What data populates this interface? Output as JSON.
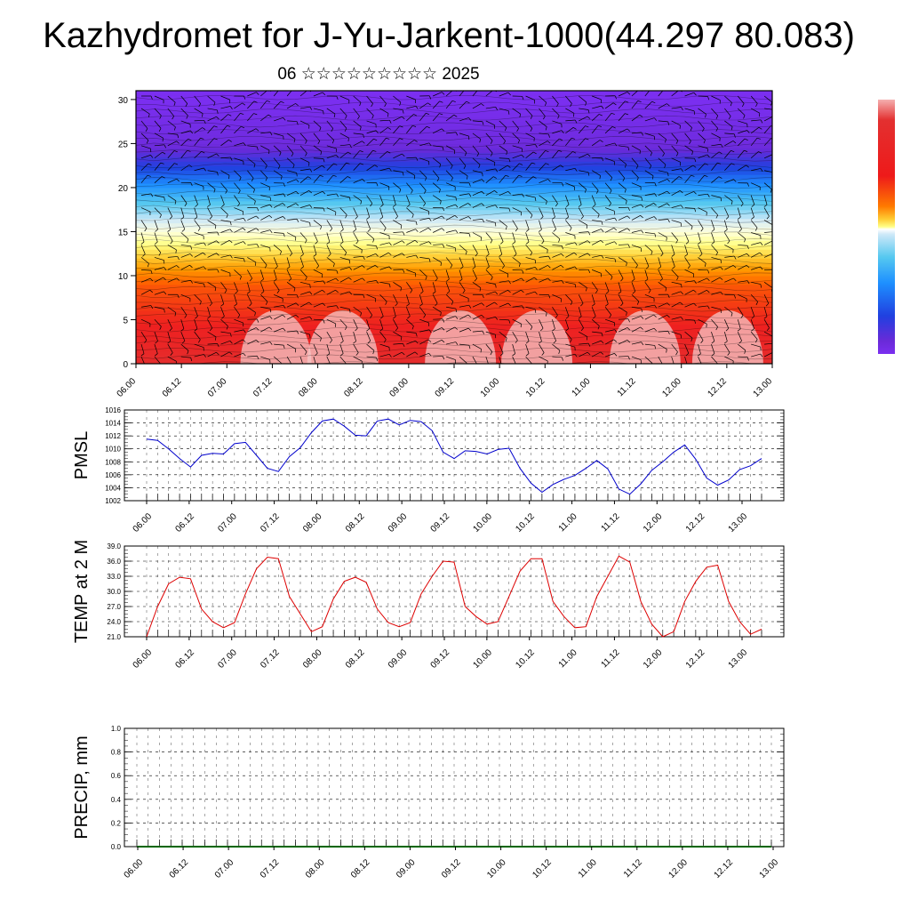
{
  "header": {
    "title": "Kazhydromet for J-Yu-Jarkent-1000(44.297 80.083)",
    "subtitle": "06 ☆☆☆☆☆☆☆☆☆ 2025"
  },
  "chart_data": [
    {
      "type": "heatmap",
      "title": "",
      "xlabel": "",
      "ylabel": "",
      "x_tick_labels": [
        "06.00",
        "06.12",
        "07.00",
        "07.12",
        "08.00",
        "08.12",
        "09.00",
        "09.12",
        "10.00",
        "10.12",
        "11.00",
        "11.12",
        "12.00",
        "12.12",
        "13.00"
      ],
      "y_tick_labels": [
        "0",
        "5",
        "10",
        "15",
        "20",
        "25",
        "30"
      ],
      "ylim": [
        0,
        31
      ],
      "colormap": [
        "#ffffff",
        "#e8a0a0",
        "#e33030",
        "#ee2020",
        "#ff6600",
        "#ff9900",
        "#ffcc33",
        "#ffff88",
        "#ffffdd",
        "#cde8f8",
        "#55c8f0",
        "#1e90ff",
        "#2040e0",
        "#6a2ad8",
        "#7b2ff0"
      ],
      "overlay": "wind barbs"
    },
    {
      "type": "line",
      "title": "",
      "xlabel": "",
      "ylabel": "PMSL",
      "x_tick_labels": [
        "06.00",
        "06.12",
        "07.00",
        "07.12",
        "08.00",
        "08.12",
        "09.00",
        "09.12",
        "10.00",
        "10.12",
        "11.00",
        "11.12",
        "12.00",
        "12.12",
        "13.00"
      ],
      "y_tick_labels": [
        "1002",
        "1004",
        "1006",
        "1008",
        "1010",
        "1012",
        "1014",
        "1016"
      ],
      "ylim": [
        1002,
        1016
      ],
      "grid": true,
      "color": "#0000cc",
      "series": [
        {
          "values": [
            1011.5,
            1011.3,
            1010.0,
            1008.5,
            1007.2,
            1009.0,
            1009.3,
            1009.2,
            1010.8,
            1011.0,
            1009.0,
            1007.0,
            1006.5,
            1008.8,
            1010.2,
            1012.5,
            1014.3,
            1014.6,
            1013.5,
            1012.1,
            1012.0,
            1014.3,
            1014.6,
            1013.7,
            1014.4,
            1014.2,
            1012.8,
            1009.5,
            1008.5,
            1009.7,
            1009.6,
            1009.2,
            1009.9,
            1010.1,
            1007.0,
            1004.7,
            1003.3,
            1004.5,
            1005.3,
            1005.9,
            1007.0,
            1008.2,
            1006.9,
            1003.8,
            1003.0,
            1004.6,
            1006.7,
            1008.0,
            1009.5,
            1010.6,
            1008.4,
            1005.5,
            1004.4,
            1005.2,
            1006.8,
            1007.4,
            1008.5
          ]
        }
      ]
    },
    {
      "type": "line",
      "title": "",
      "xlabel": "",
      "ylabel": "TEMP at 2 M",
      "x_tick_labels": [
        "06.00",
        "06.12",
        "07.00",
        "07.12",
        "08.00",
        "08.12",
        "09.00",
        "09.12",
        "10.00",
        "10.12",
        "11.00",
        "11.12",
        "12.00",
        "12.12",
        "13.00"
      ],
      "y_tick_labels": [
        "21.0",
        "24.0",
        "27.0",
        "30.0",
        "33.0",
        "36.0",
        "39.0"
      ],
      "ylim": [
        21,
        39
      ],
      "grid": true,
      "color": "#dd0000",
      "series": [
        {
          "values": [
            21.0,
            27.0,
            31.5,
            32.8,
            32.5,
            26.5,
            24.0,
            22.8,
            23.8,
            29.5,
            34.5,
            36.8,
            36.5,
            29.0,
            25.5,
            22.0,
            23.0,
            28.5,
            32.0,
            32.8,
            31.8,
            26.5,
            23.8,
            23.0,
            23.8,
            29.5,
            33.0,
            36.0,
            35.8,
            27.0,
            25.0,
            23.5,
            24.0,
            29.0,
            34.0,
            36.5,
            36.5,
            28.0,
            25.0,
            22.8,
            23.0,
            29.0,
            33.0,
            37.0,
            35.8,
            28.0,
            23.5,
            21.0,
            22.0,
            28.0,
            32.0,
            34.8,
            35.2,
            28.0,
            24.0,
            21.5,
            22.5
          ]
        }
      ]
    },
    {
      "type": "line",
      "title": "",
      "xlabel": "",
      "ylabel": "PRECIP, mm",
      "x_tick_labels": [
        "06.00",
        "06.12",
        "07.00",
        "07.12",
        "08.00",
        "08.12",
        "09.00",
        "09.12",
        "10.00",
        "10.12",
        "11.00",
        "11.12",
        "12.00",
        "12.12",
        "13.00"
      ],
      "y_tick_labels": [
        "0.0",
        "0.2",
        "0.4",
        "0.6",
        "0.8",
        "1.0"
      ],
      "ylim": [
        0,
        1
      ],
      "grid": true,
      "color": "#006600",
      "series": [
        {
          "values": [
            0,
            0,
            0,
            0,
            0,
            0,
            0,
            0,
            0,
            0,
            0,
            0,
            0,
            0,
            0,
            0,
            0,
            0,
            0,
            0,
            0,
            0,
            0,
            0,
            0,
            0,
            0,
            0,
            0,
            0,
            0,
            0,
            0,
            0,
            0,
            0,
            0,
            0,
            0,
            0,
            0,
            0,
            0,
            0,
            0,
            0,
            0,
            0,
            0,
            0,
            0,
            0,
            0,
            0,
            0,
            0,
            0
          ]
        }
      ]
    }
  ]
}
